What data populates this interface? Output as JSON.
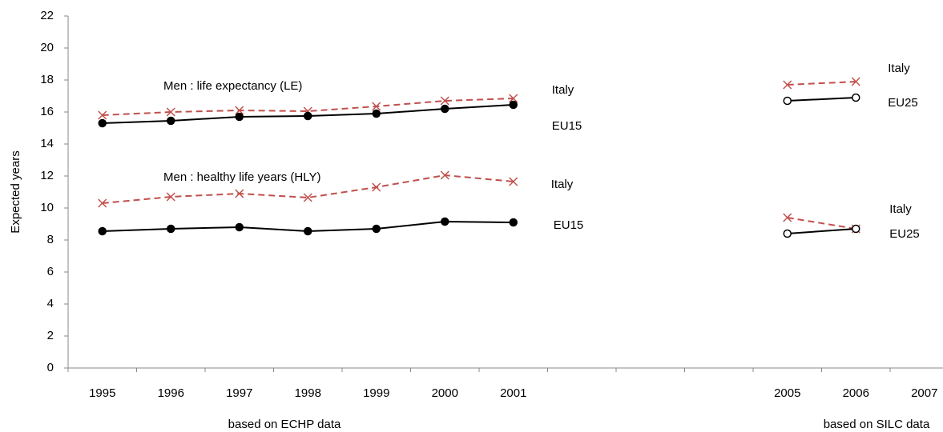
{
  "chart_data": {
    "type": "line",
    "y_label": "Expected years",
    "categories": [
      "1995",
      "1996",
      "1997",
      "1998",
      "1999",
      "2000",
      "2001",
      null,
      null,
      null,
      "2005",
      "2006",
      "2007"
    ],
    "ylim": [
      0,
      22
    ],
    "yticks": [
      0,
      2,
      4,
      6,
      8,
      10,
      12,
      14,
      16,
      18,
      20,
      22
    ],
    "annotations": [
      "Men : life expectancy (LE)",
      "Men :  healthy life years (HLY)",
      "based on ECHP data",
      "based on SILC data"
    ],
    "series": [
      {
        "name": "Italy",
        "color": "#c0504d",
        "dashed": true,
        "marker": "x",
        "values": [
          15.8,
          16.0,
          16.1,
          16.05,
          16.35,
          16.7,
          16.85,
          null,
          null,
          null,
          null,
          null,
          null
        ]
      },
      {
        "name": "EU15",
        "color": "#000000",
        "dashed": false,
        "marker": "circle",
        "values": [
          15.3,
          15.45,
          15.7,
          15.75,
          15.9,
          16.2,
          16.45,
          null,
          null,
          null,
          null,
          null,
          null
        ]
      },
      {
        "name": "Italy",
        "color": "#c0504d",
        "dashed": true,
        "marker": "x",
        "values": [
          null,
          null,
          null,
          null,
          null,
          null,
          null,
          null,
          null,
          null,
          17.7,
          17.9,
          null
        ]
      },
      {
        "name": "EU25",
        "color": "#000000",
        "dashed": false,
        "marker": "open-circle",
        "values": [
          null,
          null,
          null,
          null,
          null,
          null,
          null,
          null,
          null,
          null,
          16.7,
          16.9,
          null
        ]
      },
      {
        "name": "Italy",
        "color": "#c0504d",
        "dashed": true,
        "marker": "x",
        "values": [
          10.3,
          10.7,
          10.9,
          10.65,
          11.3,
          12.05,
          11.65,
          null,
          null,
          null,
          null,
          null,
          null
        ]
      },
      {
        "name": "EU15",
        "color": "#000000",
        "dashed": false,
        "marker": "circle",
        "values": [
          8.55,
          8.7,
          8.8,
          8.55,
          8.7,
          9.15,
          9.1,
          null,
          null,
          null,
          null,
          null,
          null
        ]
      },
      {
        "name": "Italy",
        "color": "#c0504d",
        "dashed": true,
        "marker": "x",
        "values": [
          null,
          null,
          null,
          null,
          null,
          null,
          null,
          null,
          null,
          null,
          9.4,
          8.7,
          null
        ]
      },
      {
        "name": "EU25",
        "color": "#000000",
        "dashed": false,
        "marker": "open-circle",
        "values": [
          null,
          null,
          null,
          null,
          null,
          null,
          null,
          null,
          null,
          null,
          8.4,
          8.7,
          null
        ]
      }
    ]
  }
}
